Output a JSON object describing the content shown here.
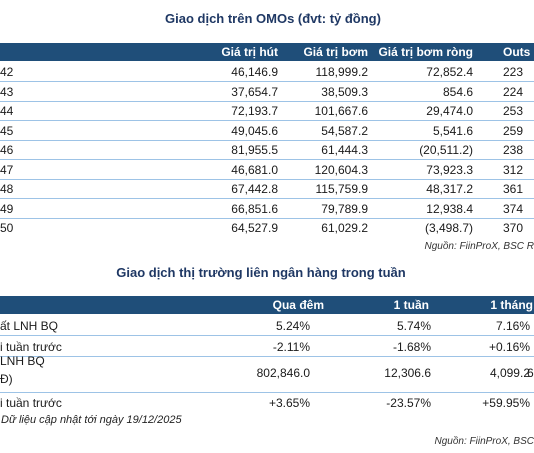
{
  "omo": {
    "title": "Giao dịch trên OMOs (đvt: tỷ đồng)",
    "headers": [
      "Giá trị hút",
      "Giá trị bơm",
      "Giá trị bơm ròng",
      "Outs"
    ],
    "rows": [
      {
        "label": "42",
        "hut": "46,146.9",
        "bom": "118,999.2",
        "rong": "72,852.4",
        "outs": "223"
      },
      {
        "label": "43",
        "hut": "37,654.7",
        "bom": "38,509.3",
        "rong": "854.6",
        "outs": "224"
      },
      {
        "label": "44",
        "hut": "72,193.7",
        "bom": "101,667.6",
        "rong": "29,474.0",
        "outs": "253"
      },
      {
        "label": "45",
        "hut": "49,045.6",
        "bom": "54,587.2",
        "rong": "5,541.6",
        "outs": "259"
      },
      {
        "label": "46",
        "hut": "81,955.5",
        "bom": "61,444.3",
        "rong": "(20,511.2)",
        "outs": "238"
      },
      {
        "label": "47",
        "hut": "46,681.0",
        "bom": "120,604.3",
        "rong": "73,923.3",
        "outs": "312"
      },
      {
        "label": "48",
        "hut": "67,442.8",
        "bom": "115,759.9",
        "rong": "48,317.2",
        "outs": "361"
      },
      {
        "label": "49",
        "hut": "66,851.6",
        "bom": "79,789.9",
        "rong": "12,938.4",
        "outs": "374"
      },
      {
        "label": "50",
        "hut": "64,527.9",
        "bom": "61,029.2",
        "rong": "(3,498.7)",
        "outs": "370"
      }
    ],
    "source": "Nguồn: FiinProX, BSC R"
  },
  "interbank": {
    "title": "Giao dịch thị trường liên ngân hàng trong tuần",
    "headers": [
      "Qua đêm",
      "1 tuần",
      "1 tháng"
    ],
    "rows": [
      {
        "label": "ất LNH BQ",
        "qd": "5.24%",
        "w1": "5.74%",
        "m1": "7.16%",
        "extra": ""
      },
      {
        "label": "i tuần trước",
        "qd": "-2.11%",
        "w1": "-1.68%",
        "m1": "+0.16%",
        "extra": ""
      },
      {
        "label": "LNH BQ",
        "label2": "Đ)",
        "qd": "802,846.0",
        "w1": "12,306.6",
        "m1": "4,099.2",
        "extra": "6"
      },
      {
        "label": "i tuần trước",
        "qd": "+3.65%",
        "w1": "-23.57%",
        "m1": "+59.95%",
        "extra": ""
      }
    ],
    "note": "Dữ liệu cập nhật tới ngày 19/12/2025",
    "source": "Nguồn: FiinProX, BSC"
  }
}
